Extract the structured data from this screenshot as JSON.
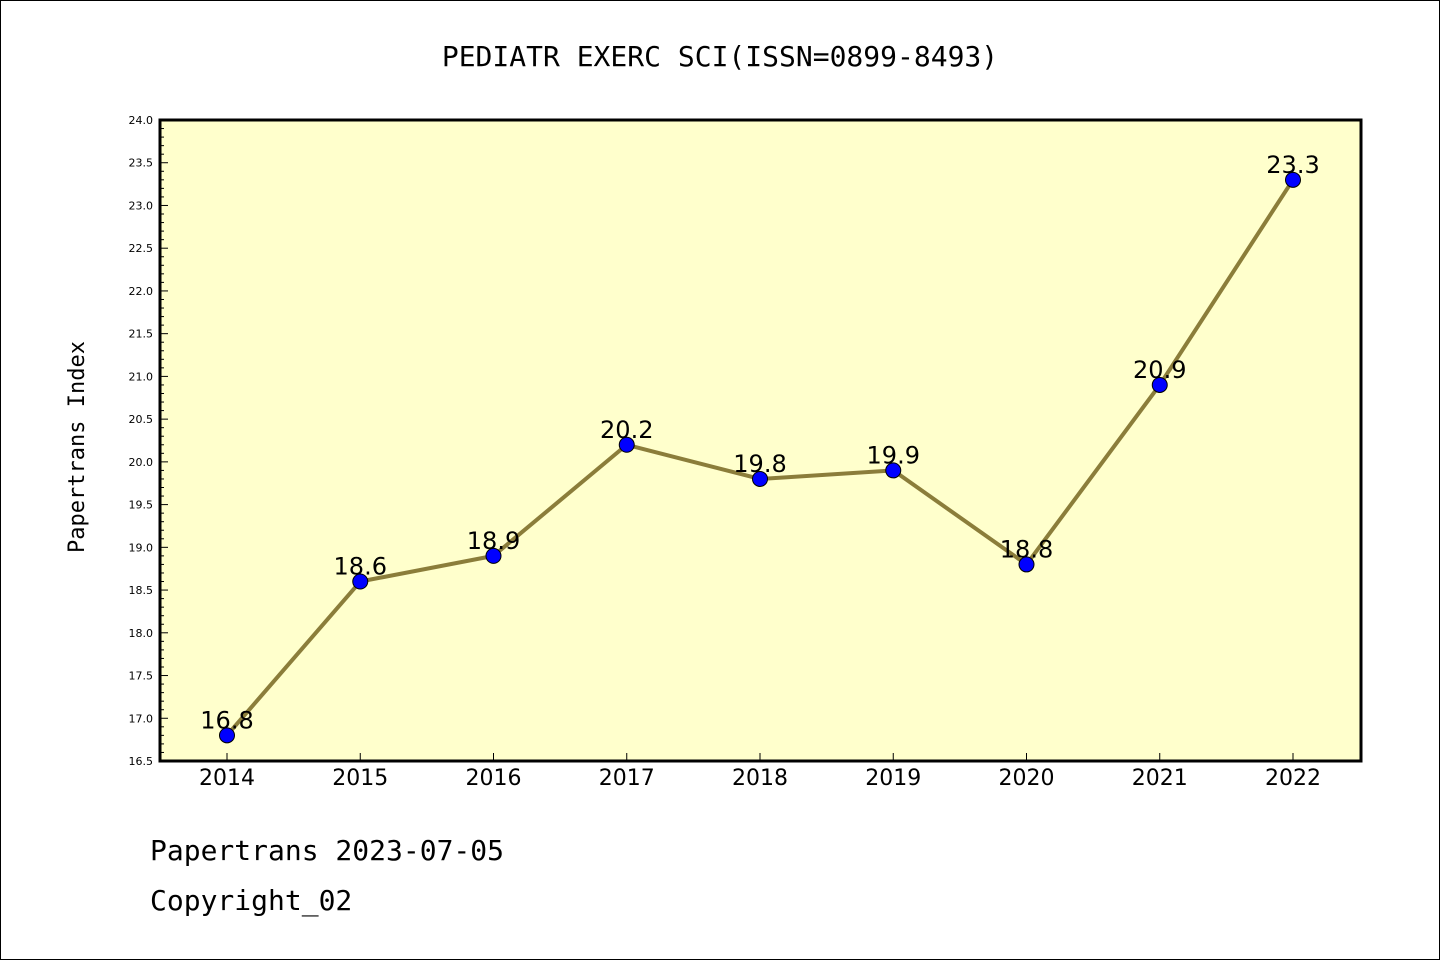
{
  "chart_data": {
    "type": "line",
    "title": "PEDIATR EXERC SCI(ISSN=0899-8493)",
    "ylabel": "Papertrans Index",
    "xlabel": "",
    "categories": [
      "2014",
      "2015",
      "2016",
      "2017",
      "2018",
      "2019",
      "2020",
      "2021",
      "2022"
    ],
    "values": [
      16.8,
      18.6,
      18.9,
      20.2,
      19.8,
      19.9,
      18.8,
      20.9,
      23.3
    ],
    "data_labels": [
      "16.8",
      "18.6",
      "18.9",
      "20.2",
      "19.8",
      "19.9",
      "18.8",
      "20.9",
      "23.3"
    ],
    "ylim": [
      16.5,
      24.0
    ],
    "y_ticks": [
      "16.5",
      "17.0",
      "17.5",
      "18.0",
      "18.5",
      "19.0",
      "19.5",
      "20.0",
      "20.5",
      "21.0",
      "21.5",
      "22.0",
      "22.5",
      "23.0",
      "23.5",
      "24.0"
    ],
    "grid": false,
    "legend": "none",
    "colors": {
      "plot_background": "#ffffcc",
      "line": "#8b7d3a",
      "marker": "#0000ff"
    }
  },
  "footer": {
    "line1": "Papertrans 2023-07-05",
    "line2": "Copyright_02"
  }
}
